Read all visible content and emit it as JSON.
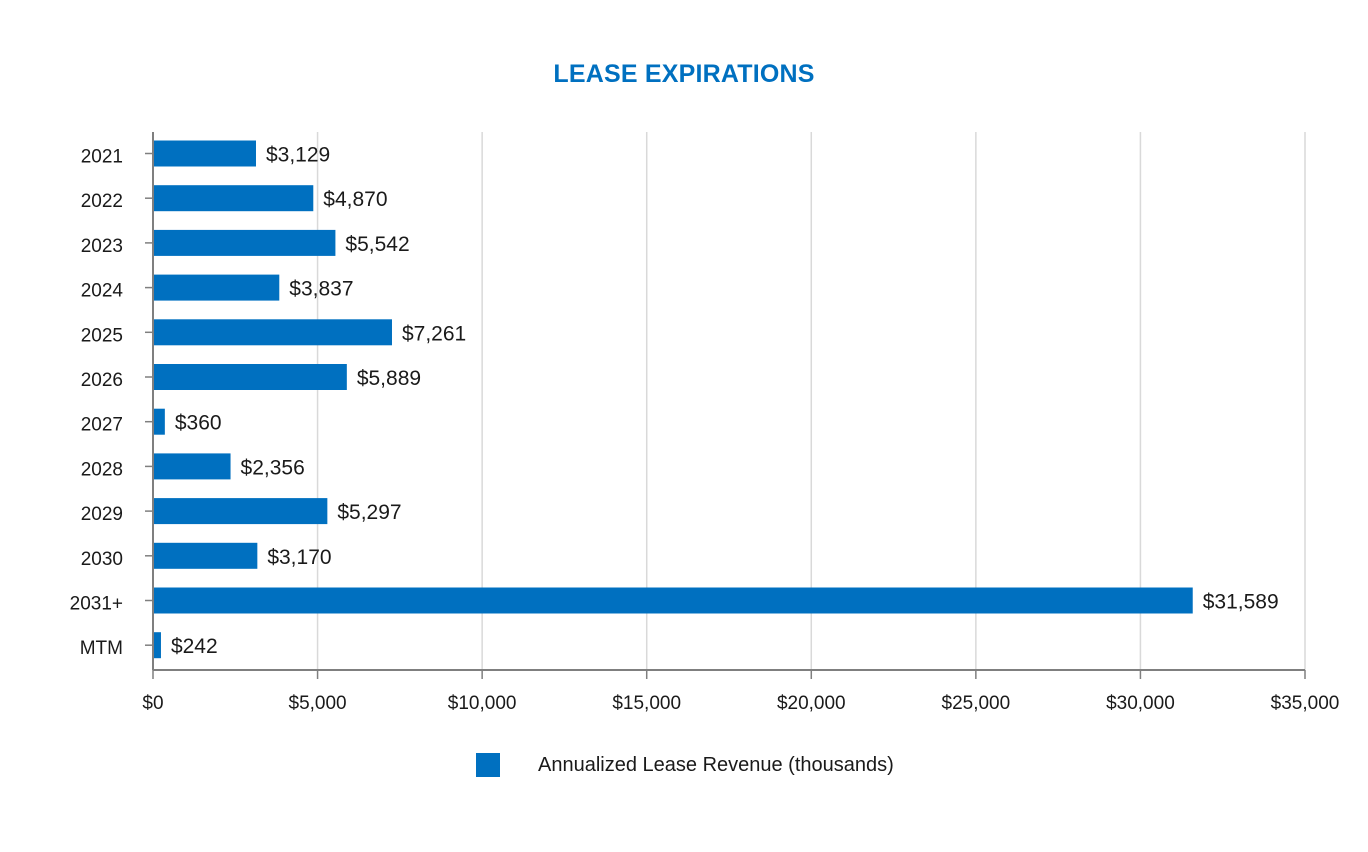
{
  "colors": {
    "bar": "#0070c0",
    "title": "#0070c0",
    "grid": "#d9d9d9",
    "axis": "#7f7f7f",
    "text": "#1a1a1a"
  },
  "chart_data": {
    "type": "bar",
    "orientation": "horizontal",
    "title": "LEASE EXPIRATIONS",
    "xlabel": "",
    "ylabel": "",
    "categories": [
      "2021",
      "2022",
      "2023",
      "2024",
      "2025",
      "2026",
      "2027",
      "2028",
      "2029",
      "2030",
      "2031+",
      "MTM"
    ],
    "series": [
      {
        "name": "Annualized Lease Revenue (thousands)",
        "values": [
          3129,
          4870,
          5542,
          3837,
          7261,
          5889,
          360,
          2356,
          5297,
          3170,
          31589,
          242
        ],
        "labels": [
          "$3,129",
          "$4,870",
          "$5,542",
          "$3,837",
          "$7,261",
          "$5,889",
          "$360",
          "$2,356",
          "$5,297",
          "$3,170",
          "$31,589",
          "$242"
        ]
      }
    ],
    "xlim": [
      0,
      35000
    ],
    "xticks": [
      0,
      5000,
      10000,
      15000,
      20000,
      25000,
      30000,
      35000
    ],
    "xtick_labels": [
      "$0",
      "$5,000",
      "$10,000",
      "$15,000",
      "$20,000",
      "$25,000",
      "$30,000",
      "$35,000"
    ],
    "grid": true,
    "legend_position": "bottom"
  }
}
